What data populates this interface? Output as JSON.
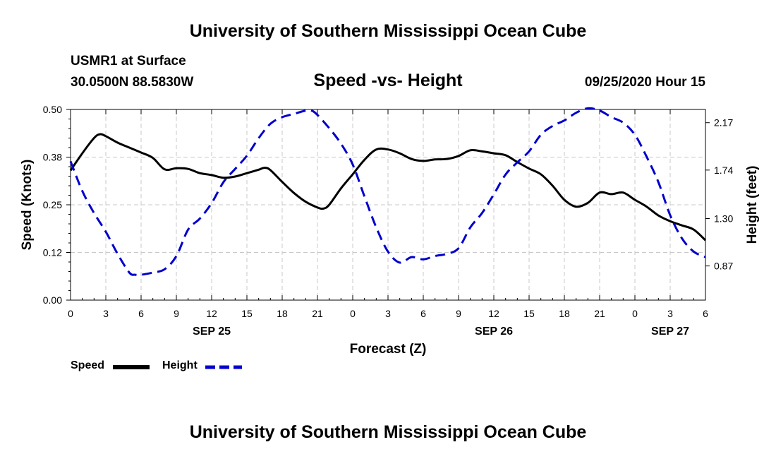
{
  "header": {
    "title_top": "University of Southern Mississippi Ocean Cube",
    "station": "USMR1 at Surface",
    "coords": "30.0500N 88.5830W",
    "subtitle": "Speed -vs- Height",
    "datetime": "09/25/2020 Hour 15",
    "title_bottom": "University of Southern Mississippi Ocean Cube"
  },
  "legend": {
    "speed_label": "Speed",
    "height_label": "Height"
  },
  "chart_data": {
    "type": "line",
    "title": "Speed -vs- Height",
    "xlabel": "Forecast (Z)",
    "ylabel_left": "Speed (Knots)",
    "ylabel_right": "Height (feet)",
    "x_range_hours": [
      0,
      54
    ],
    "x_ticks": [
      {
        "hour": 0,
        "label": "0"
      },
      {
        "hour": 3,
        "label": "3"
      },
      {
        "hour": 6,
        "label": "6"
      },
      {
        "hour": 9,
        "label": "9"
      },
      {
        "hour": 12,
        "label": "12"
      },
      {
        "hour": 15,
        "label": "15"
      },
      {
        "hour": 18,
        "label": "18"
      },
      {
        "hour": 21,
        "label": "21"
      },
      {
        "hour": 24,
        "label": "0"
      },
      {
        "hour": 27,
        "label": "3"
      },
      {
        "hour": 30,
        "label": "6"
      },
      {
        "hour": 33,
        "label": "9"
      },
      {
        "hour": 36,
        "label": "12"
      },
      {
        "hour": 39,
        "label": "15"
      },
      {
        "hour": 42,
        "label": "18"
      },
      {
        "hour": 45,
        "label": "21"
      },
      {
        "hour": 48,
        "label": "0"
      },
      {
        "hour": 51,
        "label": "3"
      },
      {
        "hour": 54,
        "label": "6"
      }
    ],
    "date_labels": [
      {
        "hour": 12,
        "label": "SEP 25"
      },
      {
        "hour": 36,
        "label": "SEP 26"
      },
      {
        "hour": 51,
        "label": "SEP 27"
      }
    ],
    "y_left": {
      "range": [
        0,
        0.5
      ],
      "ticks": [
        0,
        0.125,
        0.25,
        0.375,
        0.5
      ],
      "tick_labels": [
        "0.00",
        "0.12",
        "0.25",
        "0.38",
        "0.50"
      ]
    },
    "y_right": {
      "range": [
        0.56,
        2.29
      ],
      "ticks": [
        0.87,
        1.3,
        1.74,
        2.17
      ],
      "tick_labels": [
        "0.87",
        "1.30",
        "1.74",
        "2.17"
      ]
    },
    "grid": true,
    "series": [
      {
        "name": "Speed",
        "axis": "left",
        "color": "#000000",
        "style": "solid",
        "x": [
          0,
          1,
          2,
          2.5,
          3,
          4,
          5,
          6,
          7,
          8,
          9,
          10,
          11,
          12,
          13,
          14,
          15,
          16,
          16.5,
          17,
          18,
          19,
          20,
          21,
          21.5,
          22,
          23,
          24,
          25,
          26,
          27,
          28,
          29,
          30,
          31,
          32,
          33,
          34,
          35,
          36,
          37,
          38,
          39,
          40,
          41,
          42,
          43,
          44,
          45,
          46,
          47,
          48,
          49,
          50,
          51,
          52,
          53,
          54
        ],
        "values": [
          0.34,
          0.385,
          0.425,
          0.435,
          0.43,
          0.413,
          0.4,
          0.387,
          0.373,
          0.343,
          0.346,
          0.344,
          0.333,
          0.328,
          0.321,
          0.324,
          0.333,
          0.342,
          0.347,
          0.341,
          0.31,
          0.281,
          0.258,
          0.243,
          0.24,
          0.25,
          0.293,
          0.33,
          0.368,
          0.395,
          0.395,
          0.385,
          0.37,
          0.365,
          0.369,
          0.37,
          0.378,
          0.393,
          0.39,
          0.385,
          0.38,
          0.362,
          0.345,
          0.33,
          0.3,
          0.263,
          0.245,
          0.255,
          0.282,
          0.278,
          0.282,
          0.263,
          0.245,
          0.222,
          0.207,
          0.196,
          0.185,
          0.157
        ]
      },
      {
        "name": "Height",
        "axis": "right",
        "color": "#0000cc",
        "style": "dashed",
        "x": [
          0,
          1,
          2,
          3,
          4,
          5,
          5.5,
          6,
          7,
          8,
          9,
          10,
          11,
          12,
          13,
          14,
          15,
          16,
          17,
          18,
          19,
          20,
          20.5,
          21,
          22,
          23,
          24,
          25,
          26,
          27,
          28,
          29,
          30,
          31,
          32,
          33,
          34,
          35,
          36,
          37,
          38,
          39,
          40,
          41,
          42,
          43,
          44,
          45,
          46,
          47,
          48,
          49,
          50,
          51,
          52,
          53,
          54
        ],
        "values": [
          1.82,
          1.55,
          1.35,
          1.18,
          0.98,
          0.81,
          0.79,
          0.79,
          0.81,
          0.84,
          0.96,
          1.2,
          1.3,
          1.44,
          1.63,
          1.75,
          1.87,
          2.03,
          2.16,
          2.22,
          2.25,
          2.28,
          2.28,
          2.24,
          2.12,
          1.98,
          1.79,
          1.5,
          1.22,
          1.0,
          0.9,
          0.95,
          0.93,
          0.96,
          0.98,
          1.03,
          1.22,
          1.35,
          1.52,
          1.7,
          1.81,
          1.91,
          2.06,
          2.14,
          2.19,
          2.26,
          2.3,
          2.28,
          2.22,
          2.17,
          2.06,
          1.86,
          1.63,
          1.33,
          1.12,
          1.0,
          0.95
        ]
      }
    ]
  }
}
